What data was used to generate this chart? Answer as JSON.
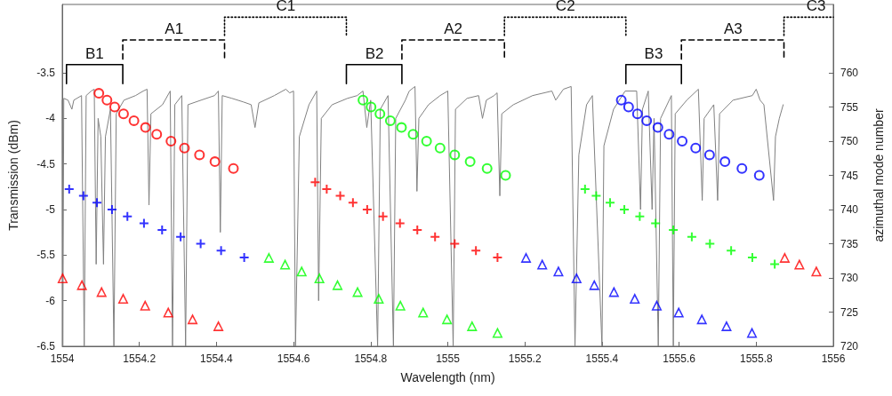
{
  "chart_data": {
    "type": "scatter",
    "xlabel": "Wavelength (nm)",
    "ylabel": "Transmission (dBm)",
    "y2label": "azimuthal mode number",
    "xlim": [
      1554,
      1556
    ],
    "xticks": [
      1554,
      1554.2,
      1554.4,
      1554.6,
      1554.8,
      1555,
      1555.2,
      1555.4,
      1555.6,
      1555.8,
      1556
    ],
    "ylim": [
      -6.5,
      -2.75
    ],
    "yticks": [
      -6.5,
      -6,
      -5.5,
      -5,
      -4.5,
      -4,
      -3.5
    ],
    "y2lim": [
      720,
      770
    ],
    "y2ticks": [
      720,
      725,
      730,
      735,
      740,
      745,
      750,
      755,
      760
    ],
    "grid": false,
    "annotations": [
      {
        "text": "B1",
        "x": 1554.084,
        "y": -3.41
      },
      {
        "text": "A1",
        "x": 1554.29,
        "y": -3.14
      },
      {
        "text": "C1",
        "x": 1554.58,
        "y": -2.89
      },
      {
        "text": "B2",
        "x": 1554.81,
        "y": -3.41
      },
      {
        "text": "A2",
        "x": 1555.014,
        "y": -3.14
      },
      {
        "text": "C2",
        "x": 1555.305,
        "y": -2.89
      },
      {
        "text": "B3",
        "x": 1555.534,
        "y": -3.41
      },
      {
        "text": "A3",
        "x": 1555.74,
        "y": -3.14
      },
      {
        "text": "C3",
        "x": 1555.955,
        "y": -2.89
      }
    ],
    "series": [
      {
        "type": "line",
        "color": "#808080",
        "marker": "none",
        "line_style": "solid",
        "x": [
          1554,
          1554.0015,
          1554.004,
          1554.015,
          1554.025,
          1554.03,
          1554.05,
          1554.057,
          1554.062,
          1554.075,
          1554.083,
          1554.088,
          1554.093,
          1554.1,
          1554.107,
          1554.112,
          1554.125,
          1554.134,
          1554.14,
          1554.16,
          1554.19,
          1554.21,
          1554.22,
          1554.225,
          1554.23,
          1554.26,
          1554.28,
          1554.286,
          1554.292,
          1554.31,
          1554.32,
          1554.326,
          1554.36,
          1554.395,
          1554.405,
          1554.41,
          1554.415,
          1554.44,
          1554.47,
          1554.49,
          1554.5,
          1554.51,
          1554.55,
          1554.58,
          1554.59,
          1554.6,
          1554.605,
          1554.615,
          1554.64,
          1554.66,
          1554.665,
          1554.672,
          1554.7,
          1554.74,
          1554.765,
          1554.78,
          1554.79,
          1554.8,
          1554.818,
          1554.825,
          1554.845,
          1554.859,
          1554.865,
          1554.89,
          1554.9,
          1554.915,
          1554.92,
          1554.925,
          1554.95,
          1554.98,
          1555,
          1555.014,
          1555.02,
          1555.05,
          1555.08,
          1555.09,
          1555.1,
          1555.12,
          1555.128,
          1555.135,
          1555.14,
          1555.17,
          1555.22,
          1555.27,
          1555.28,
          1555.3,
          1555.32,
          1555.33,
          1555.34,
          1555.36,
          1555.375,
          1555.4,
          1555.405,
          1555.43,
          1555.46,
          1555.49,
          1555.5,
          1555.505,
          1555.52,
          1555.53,
          1555.535,
          1555.546,
          1555.552,
          1555.58,
          1555.585,
          1555.59,
          1555.62,
          1555.65,
          1555.66,
          1555.665,
          1555.69,
          1555.7,
          1555.705,
          1555.74,
          1555.79,
          1555.8,
          1555.81,
          1555.82,
          1555.845,
          1555.85,
          1555.86,
          1555.87
        ],
        "values": [
          -3.8,
          -6.5,
          -3.78,
          -3.8,
          -3.9,
          -3.8,
          -3.75,
          -6.5,
          -3.75,
          -3.7,
          -3.68,
          -5.6,
          -4.0,
          -4.2,
          -5.6,
          -4.2,
          -3.9,
          -6.5,
          -3.95,
          -3.8,
          -3.75,
          -3.7,
          -3.68,
          -4.95,
          -3.95,
          -3.85,
          -3.7,
          -6.5,
          -3.85,
          -3.75,
          -6.5,
          -3.85,
          -3.8,
          -3.75,
          -3.7,
          -5.25,
          -3.75,
          -3.78,
          -3.82,
          -3.85,
          -4.1,
          -3.83,
          -3.75,
          -3.68,
          -3.72,
          -3.7,
          -6.5,
          -4.2,
          -3.85,
          -3.7,
          -6.0,
          -4.0,
          -3.85,
          -3.78,
          -3.75,
          -3.7,
          -4.1,
          -3.8,
          -6.5,
          -3.9,
          -3.75,
          -6.5,
          -4.0,
          -3.8,
          -3.7,
          -3.65,
          -4.8,
          -4.0,
          -3.85,
          -3.75,
          -3.7,
          -6.5,
          -3.9,
          -3.78,
          -3.75,
          -4.0,
          -3.8,
          -3.75,
          -3.72,
          -4.85,
          -3.95,
          -3.85,
          -3.75,
          -3.7,
          -3.8,
          -3.68,
          -3.65,
          -6.5,
          -4.4,
          -3.85,
          -3.75,
          -6.5,
          -4.3,
          -3.9,
          -3.7,
          -3.7,
          -5.0,
          -3.9,
          -3.7,
          -5.0,
          -4.0,
          -6.5,
          -4.0,
          -3.75,
          -6.5,
          -3.95,
          -3.8,
          -3.68,
          -4.9,
          -4.0,
          -3.85,
          -4.9,
          -3.95,
          -3.8,
          -3.75,
          -3.68,
          -3.8,
          -3.85,
          -4.9,
          -4.2,
          -4.0,
          -3.85
        ]
      },
      {
        "type": "line",
        "color": "#000000",
        "marker": "none",
        "line_style": "solid",
        "x": [
          1554.011,
          1554.011,
          1554.157,
          1554.157
        ],
        "values": [
          -3.62,
          -3.41,
          -3.41,
          -3.62
        ]
      },
      {
        "type": "line",
        "color": "#000000",
        "marker": "none",
        "line_style": "dashed",
        "x": [
          1554.157,
          1554.157,
          1554.421,
          1554.421
        ],
        "values": [
          -3.35,
          -3.14,
          -3.14,
          -3.35
        ]
      },
      {
        "type": "line",
        "color": "#000000",
        "marker": "none",
        "line_style": "dotted",
        "x": [
          1554.421,
          1554.421,
          1554.737,
          1554.737
        ],
        "values": [
          -3.09,
          -2.89,
          -2.89,
          -3.09
        ]
      },
      {
        "type": "line",
        "color": "#000000",
        "marker": "none",
        "line_style": "solid",
        "x": [
          1554.737,
          1554.737,
          1554.881,
          1554.881
        ],
        "values": [
          -3.62,
          -3.41,
          -3.41,
          -3.62
        ]
      },
      {
        "type": "line",
        "color": "#000000",
        "marker": "none",
        "line_style": "dashed",
        "x": [
          1554.881,
          1554.881,
          1555.147,
          1555.147
        ],
        "values": [
          -3.35,
          -3.14,
          -3.14,
          -3.35
        ]
      },
      {
        "type": "line",
        "color": "#000000",
        "marker": "none",
        "line_style": "dotted",
        "x": [
          1555.147,
          1555.147,
          1555.462,
          1555.462
        ],
        "values": [
          -3.09,
          -2.89,
          -2.89,
          -3.09
        ]
      },
      {
        "type": "line",
        "color": "#000000",
        "marker": "none",
        "line_style": "solid",
        "x": [
          1555.462,
          1555.462,
          1555.606,
          1555.606
        ],
        "values": [
          -3.62,
          -3.41,
          -3.41,
          -3.62
        ]
      },
      {
        "type": "line",
        "color": "#000000",
        "marker": "none",
        "line_style": "dashed",
        "x": [
          1555.606,
          1555.606,
          1555.872,
          1555.872
        ],
        "values": [
          -3.35,
          -3.14,
          -3.14,
          -3.35
        ]
      },
      {
        "type": "line",
        "color": "#000000",
        "marker": "none",
        "line_style": "dotted",
        "x": [
          1555.872,
          1555.872,
          1556
        ],
        "values": [
          -3.09,
          -2.89,
          -2.89
        ]
      },
      {
        "axis": "y2",
        "color": "#ff0000",
        "marker": "circle",
        "x": [
          1554.095,
          1554.116,
          1554.136,
          1554.159,
          1554.186,
          1554.216,
          1554.245,
          1554.282,
          1554.317,
          1554.356,
          1554.396,
          1554.444
        ],
        "values": [
          757,
          756,
          755,
          754,
          753,
          752,
          751,
          750,
          749,
          748,
          747,
          746
        ]
      },
      {
        "axis": "y2",
        "color": "#00ff00",
        "marker": "circle",
        "x": [
          1554.78,
          1554.801,
          1554.824,
          1554.851,
          1554.88,
          1554.91,
          1554.945,
          1554.98,
          1555.018,
          1555.058,
          1555.102,
          1555.15
        ],
        "values": [
          756,
          755,
          754,
          753,
          752,
          751,
          750,
          749,
          748,
          747,
          746,
          745
        ]
      },
      {
        "axis": "y2",
        "color": "#0000ff",
        "marker": "circle",
        "x": [
          1555.45,
          1555.469,
          1555.492,
          1555.516,
          1555.545,
          1555.574,
          1555.608,
          1555.643,
          1555.679,
          1555.719,
          1555.763,
          1555.808
        ],
        "values": [
          756,
          755,
          754,
          753,
          752,
          751,
          750,
          749,
          748,
          747,
          746,
          745
        ]
      },
      {
        "axis": "y2",
        "color": "#0000ff",
        "marker": "cross",
        "x": [
          1554.018,
          1554.055,
          1554.09,
          1554.129,
          1554.169,
          1554.212,
          1554.259,
          1554.307,
          1554.359,
          1554.412,
          1554.472
        ],
        "values": [
          743,
          742,
          741,
          740,
          739,
          738,
          737,
          736,
          735,
          734,
          733
        ]
      },
      {
        "axis": "y2",
        "color": "#ff0000",
        "marker": "cross",
        "x": [
          1554.656,
          1554.686,
          1554.721,
          1554.754,
          1554.791,
          1554.832,
          1554.876,
          1554.921,
          1554.967,
          1555.018,
          1555.073,
          1555.129
        ],
        "values": [
          744,
          743,
          742,
          741,
          740,
          739,
          738,
          737,
          736,
          735,
          734,
          733
        ]
      },
      {
        "axis": "y2",
        "color": "#00ff00",
        "marker": "cross",
        "x": [
          1555.356,
          1555.385,
          1555.421,
          1555.458,
          1555.498,
          1555.539,
          1555.585,
          1555.633,
          1555.68,
          1555.735,
          1555.79,
          1555.848
        ],
        "values": [
          743,
          742,
          741,
          740,
          739,
          738,
          737,
          736,
          735,
          734,
          733,
          732
        ]
      },
      {
        "axis": "y2",
        "color": "#ff0000",
        "marker": "triangle",
        "x": [
          1554.001,
          1554.051,
          1554.102,
          1554.158,
          1554.215,
          1554.275,
          1554.338,
          1554.405
        ],
        "values": [
          730,
          729,
          728,
          727,
          726,
          725,
          724,
          723
        ]
      },
      {
        "axis": "y2",
        "color": "#00ff00",
        "marker": "triangle",
        "x": [
          1554.536,
          1554.578,
          1554.621,
          1554.667,
          1554.714,
          1554.766,
          1554.821,
          1554.877,
          1554.936,
          1554.998,
          1555.063,
          1555.129
        ],
        "values": [
          733,
          732,
          731,
          730,
          729,
          728,
          727,
          726,
          725,
          724,
          723,
          722
        ]
      },
      {
        "axis": "y2",
        "color": "#0000ff",
        "marker": "triangle",
        "x": [
          1555.203,
          1555.245,
          1555.287,
          1555.334,
          1555.38,
          1555.431,
          1555.485,
          1555.542,
          1555.599,
          1555.659,
          1555.723,
          1555.789
        ],
        "values": [
          733,
          732,
          731,
          730,
          729,
          728,
          727,
          726,
          725,
          724,
          723,
          722
        ]
      },
      {
        "axis": "y2",
        "color": "#ff0000",
        "marker": "triangle",
        "x": [
          1555.874,
          1555.912,
          1555.956
        ],
        "values": [
          733,
          732,
          731
        ]
      }
    ]
  }
}
